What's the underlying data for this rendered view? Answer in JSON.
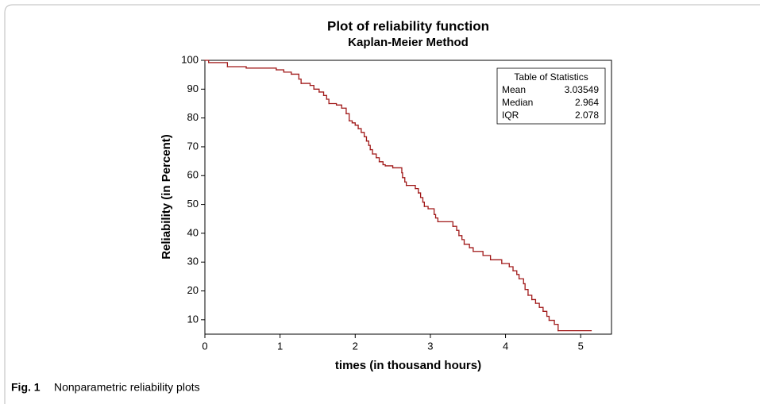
{
  "chart_data": {
    "type": "line",
    "step": "post",
    "title": "Plot of reliability function",
    "subtitle": "Kaplan-Meier Method",
    "x_label": "times (in thousand hours)",
    "y_label": "Reliability (in Percent)",
    "color": "#a01818",
    "x": [
      0,
      0.05,
      0.3,
      0.55,
      0.95,
      1.05,
      1.15,
      1.25,
      1.28,
      1.4,
      1.45,
      1.52,
      1.58,
      1.62,
      1.65,
      1.75,
      1.82,
      1.88,
      1.92,
      1.96,
      2.0,
      2.04,
      2.08,
      2.12,
      2.15,
      2.18,
      2.2,
      2.23,
      2.28,
      2.32,
      2.37,
      2.4,
      2.5,
      2.62,
      2.63,
      2.66,
      2.68,
      2.8,
      2.84,
      2.87,
      2.9,
      2.92,
      2.97,
      3.05,
      3.07,
      3.1,
      3.3,
      3.35,
      3.38,
      3.42,
      3.45,
      3.52,
      3.57,
      3.7,
      3.8,
      3.95,
      4.05,
      4.1,
      4.15,
      4.18,
      4.24,
      4.26,
      4.3,
      4.35,
      4.4,
      4.45,
      4.5,
      4.55,
      4.58,
      4.65,
      4.7,
      5.14
    ],
    "values": [
      100,
      99.2,
      97.8,
      97.3,
      96.7,
      95.9,
      95.2,
      93.5,
      92,
      91.3,
      90,
      89,
      87.8,
      86.5,
      85,
      84.5,
      83.4,
      81.5,
      79,
      78.3,
      77.5,
      76.3,
      75,
      73.5,
      72,
      70.5,
      69,
      67.5,
      66.2,
      64.8,
      63.8,
      63.4,
      62.7,
      61,
      59.3,
      57.8,
      56.6,
      55.5,
      54,
      52.4,
      50.8,
      49.3,
      48.5,
      46.5,
      45.3,
      44,
      42.4,
      41,
      39.2,
      37.8,
      36.2,
      35,
      33.7,
      32.3,
      30.8,
      29.5,
      28.4,
      27,
      25.7,
      24.2,
      22.5,
      20.5,
      18.5,
      17,
      15.7,
      14.3,
      12.9,
      11.2,
      9.8,
      8.4,
      6.2,
      6.2
    ],
    "xlim": [
      0,
      5.41
    ],
    "xticks": [
      0,
      1,
      2,
      3,
      4,
      5
    ],
    "ylim": [
      5,
      100
    ],
    "yticks": [
      10,
      20,
      30,
      40,
      50,
      60,
      70,
      80,
      90,
      100
    ],
    "grid": false,
    "stats_table": {
      "title": "Table of Statistics",
      "rows": [
        [
          "Mean",
          "3.03549"
        ],
        [
          "Median",
          "2.964"
        ],
        [
          "IQR",
          "2.078"
        ]
      ]
    }
  },
  "caption": {
    "label": "Fig. 1",
    "text": "Nonparametric reliability plots"
  }
}
